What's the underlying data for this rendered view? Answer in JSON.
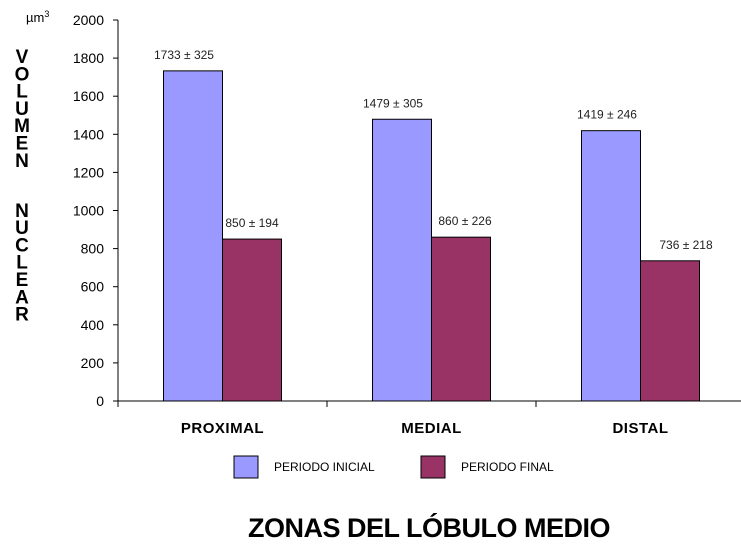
{
  "chart_data": {
    "type": "bar",
    "categories": [
      "PROXIMAL",
      "MEDIAL",
      "DISTAL"
    ],
    "series": [
      {
        "name": "PERIODO INICIAL",
        "values": [
          1733,
          1479,
          1419
        ],
        "color": "#9999ff",
        "labels": [
          "1733 ± 325",
          "1479 ± 305",
          "1419 ± 246"
        ]
      },
      {
        "name": "PERIODO FINAL",
        "values": [
          850,
          860,
          736
        ],
        "color": "#993366",
        "labels": [
          "850 ± 194",
          "860 ± 226",
          "736 ± 218"
        ]
      }
    ],
    "ylim": [
      0,
      2000
    ],
    "yticks": [
      0,
      200,
      400,
      600,
      800,
      1000,
      1200,
      1400,
      1600,
      1800,
      2000
    ],
    "ylabel_lines": [
      "VOLUMEN",
      "NUCLEAR"
    ],
    "yunit": "µm",
    "yunit_sup": "3",
    "xlabel": "ZONAS DEL LÓBULO MEDIO",
    "grid": false,
    "legend_position": "bottom"
  }
}
